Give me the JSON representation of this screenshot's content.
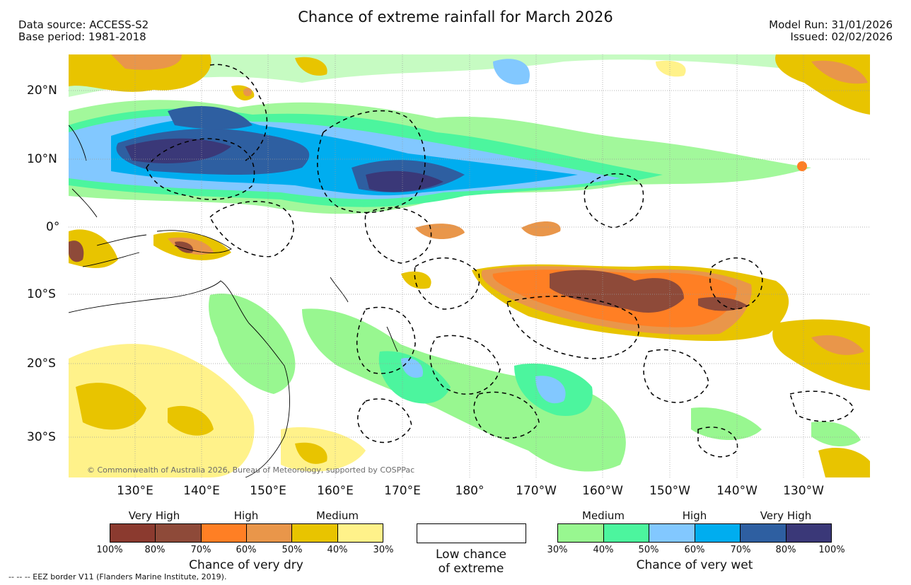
{
  "title": "Chance of extreme rainfall for March 2026",
  "data_source": "Data source: ACCESS-S2",
  "base_period": "Base period: 1981-2018",
  "model_run": "Model Run: 31/01/2026",
  "issued": "Issued: 02/02/2026",
  "lat_ticks": [
    "20°N",
    "10°N",
    "0°",
    "10°S",
    "20°S",
    "30°S"
  ],
  "lon_ticks": [
    "130°E",
    "140°E",
    "150°E",
    "160°E",
    "170°E",
    "180°",
    "170°W",
    "160°W",
    "150°W",
    "140°W",
    "130°W"
  ],
  "copyright": "© Commonwealth of Australia 2026, Bureau of Meteorology, supported by COSPPac",
  "dry_legend": {
    "categories": [
      "Very High",
      "High",
      "Medium"
    ],
    "labels": [
      "100%",
      "80%",
      "70%",
      "60%",
      "50%",
      "40%",
      "30%"
    ],
    "colors": [
      "#8b3a2f",
      "#8e4a39",
      "#ff7f24",
      "#e9964a",
      "#e8c400",
      "#fff28a"
    ],
    "title": "Chance of very dry"
  },
  "low_legend": {
    "line1": "Low chance",
    "line2": "of extreme"
  },
  "wet_legend": {
    "categories": [
      "Medium",
      "High",
      "Very High"
    ],
    "labels": [
      "30%",
      "40%",
      "50%",
      "60%",
      "70%",
      "80%",
      "100%"
    ],
    "colors": [
      "#98f790",
      "#4cf59e",
      "#82c8ff",
      "#00adef",
      "#2e5fa1",
      "#3a3878"
    ],
    "title": "Chance of very wet"
  },
  "footnote": "--  --  -- EEZ border V11 (Flanders Marine Institute, 2019)."
}
